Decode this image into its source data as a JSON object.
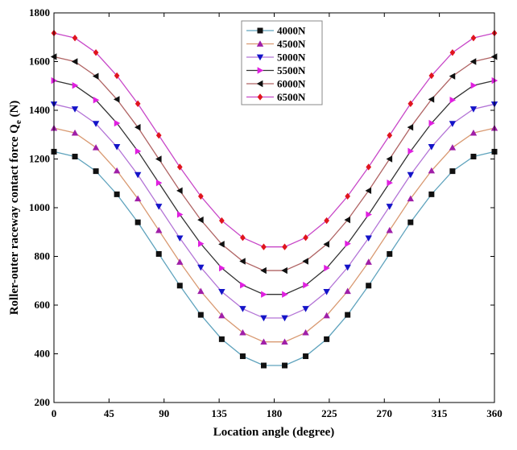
{
  "chart_data": {
    "type": "line",
    "title": "",
    "xlabel": "Location angle (degree)",
    "ylabel_main": "Roller-outer raceway contact force Q",
    "ylabel_sub": "e",
    "ylabel_unit": " (N)",
    "xlim": [
      0,
      360
    ],
    "ylim": [
      200,
      1800
    ],
    "xticks": [
      0,
      45,
      90,
      135,
      180,
      225,
      270,
      315,
      360
    ],
    "yticks": [
      200,
      400,
      600,
      800,
      1000,
      1200,
      1400,
      1600,
      1800
    ],
    "x": [
      0,
      17.14,
      34.29,
      51.43,
      68.57,
      85.71,
      102.86,
      120,
      137.14,
      154.29,
      171.43,
      188.57,
      205.71,
      222.86,
      240,
      257.14,
      274.29,
      291.43,
      308.57,
      325.71,
      342.86,
      360
    ],
    "legend_position": "top-center",
    "series": [
      {
        "name": "4000N",
        "line": "#5fa3bd",
        "marker": "square",
        "marker_color": "#111111",
        "values": [
          1230,
          1210,
          1150,
          1055,
          940,
          810,
          680,
          560,
          460,
          390,
          352,
          352,
          390,
          460,
          560,
          680,
          810,
          940,
          1055,
          1150,
          1210,
          1230
        ]
      },
      {
        "name": "4500N",
        "line": "#d99a72",
        "marker": "triangle-up",
        "marker_color": "#a01fa8",
        "values": [
          1327,
          1307,
          1247,
          1152,
          1037,
          907,
          777,
          657,
          557,
          487,
          449,
          449,
          487,
          557,
          657,
          777,
          907,
          1037,
          1152,
          1247,
          1307,
          1327
        ]
      },
      {
        "name": "5000N",
        "line": "#b374d6",
        "marker": "triangle-down",
        "marker_color": "#1414c8",
        "values": [
          1425,
          1405,
          1345,
          1250,
          1135,
          1005,
          875,
          755,
          655,
          585,
          547,
          547,
          585,
          655,
          755,
          875,
          1005,
          1135,
          1250,
          1345,
          1405,
          1425
        ]
      },
      {
        "name": "5500N",
        "line": "#333333",
        "marker": "triangle-right",
        "marker_color": "#e020e0",
        "values": [
          1522,
          1502,
          1442,
          1347,
          1232,
          1102,
          972,
          852,
          752,
          682,
          644,
          644,
          682,
          752,
          852,
          972,
          1102,
          1232,
          1347,
          1442,
          1502,
          1522
        ]
      },
      {
        "name": "6000N",
        "line": "#b06464",
        "marker": "triangle-left",
        "marker_color": "#111111",
        "values": [
          1620,
          1600,
          1540,
          1445,
          1330,
          1200,
          1070,
          950,
          850,
          780,
          742,
          742,
          780,
          850,
          950,
          1070,
          1200,
          1330,
          1445,
          1540,
          1600,
          1620
        ]
      },
      {
        "name": "6500N",
        "line": "#c848c8",
        "marker": "diamond",
        "marker_color": "#e0141e",
        "values": [
          1717,
          1697,
          1637,
          1542,
          1427,
          1297,
          1167,
          1047,
          947,
          877,
          839,
          839,
          877,
          947,
          1047,
          1167,
          1297,
          1427,
          1542,
          1637,
          1697,
          1717
        ]
      }
    ]
  }
}
